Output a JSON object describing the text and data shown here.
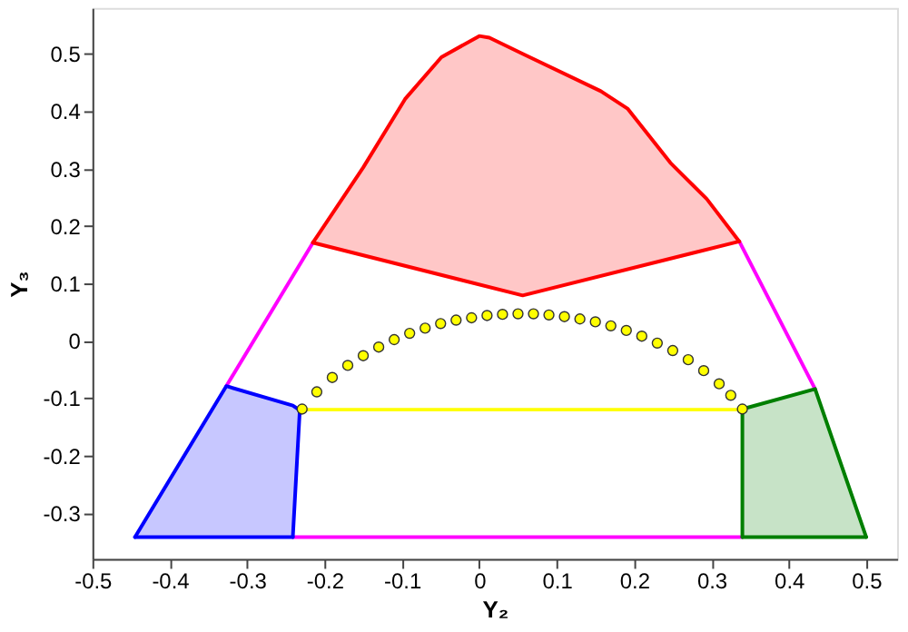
{
  "chart_data": {
    "type": "line",
    "xlabel": "Y₂",
    "ylabel": "Y₃",
    "xlim": [
      -0.5,
      0.54
    ],
    "ylim": [
      -0.38,
      0.58
    ],
    "xticks": [
      -0.5,
      -0.4,
      -0.3,
      -0.2,
      -0.1,
      0,
      0.1,
      0.2,
      0.3,
      0.4,
      0.5
    ],
    "yticks": [
      -0.3,
      -0.2,
      -0.1,
      0,
      0.1,
      0.2,
      0.3,
      0.4,
      0.5
    ],
    "grid": false,
    "series": [
      {
        "color": "#ff00ff",
        "x": [
          -0.327,
          -0.215
        ],
        "values": [
          -0.079,
          0.171
        ]
      },
      {
        "color": "#ff00ff",
        "x": [
          0.336,
          0.434
        ],
        "values": [
          0.173,
          -0.084
        ]
      },
      {
        "color": "#ff00ff",
        "x": [
          -0.241,
          0.34
        ],
        "values": [
          -0.342,
          -0.342
        ]
      },
      {
        "color": "#ff0000",
        "x": [
          -0.215,
          -0.15,
          -0.096,
          -0.049,
          0,
          0.013,
          0.056,
          0.157,
          0.192,
          0.247,
          0.294,
          0.336
        ],
        "values": [
          0.171,
          0.302,
          0.421,
          0.494,
          0.531,
          0.528,
          0.5,
          0.435,
          0.404,
          0.31,
          0.247,
          0.173
        ],
        "lower": [
          0.171,
          0.149,
          0.131,
          0.115,
          0.098,
          0.094,
          0.079,
          0.113,
          0.125,
          0.143,
          0.159,
          0.173
        ],
        "upper": [
          0.171,
          0.302,
          0.421,
          0.494,
          0.531,
          0.528,
          0.5,
          0.435,
          0.404,
          0.31,
          0.247,
          0.173
        ]
      },
      {
        "color": "#ff0000",
        "x": [
          -0.215,
          0.056,
          0.336
        ],
        "values": [
          0.171,
          0.079,
          0.173
        ]
      },
      {
        "color": "#0000ff",
        "x": [
          -0.445,
          -0.327,
          -0.241,
          -0.232
        ],
        "values": [
          -0.342,
          -0.079,
          -0.113,
          -0.121
        ],
        "lower": [
          -0.342,
          -0.342,
          -0.342,
          -0.121
        ],
        "upper": [
          -0.342,
          -0.079,
          -0.113,
          -0.121
        ]
      },
      {
        "color": "#0000ff",
        "x": [
          -0.241,
          -0.232
        ],
        "values": [
          -0.342,
          -0.121
        ]
      },
      {
        "color": "#0000ff",
        "x": [
          -0.445,
          -0.241
        ],
        "values": [
          -0.342,
          -0.342
        ]
      },
      {
        "color": "#007f00",
        "x": [
          0.34,
          0.434,
          0.5
        ],
        "values": [
          -0.119,
          -0.084,
          -0.342
        ],
        "lower": [
          -0.342,
          -0.342,
          -0.342
        ],
        "upper": [
          -0.119,
          -0.084,
          -0.342
        ]
      },
      {
        "color": "#007f00",
        "x": [
          0.34,
          0.34
        ],
        "values": [
          -0.342,
          -0.119
        ]
      },
      {
        "color": "#007f00",
        "x": [
          0.34,
          0.5
        ],
        "values": [
          -0.342,
          -0.342
        ]
      },
      {
        "color": "#ffff00",
        "x": [
          -0.229,
          0.34
        ],
        "values": [
          -0.12,
          -0.12
        ]
      },
      {
        "type": "scatter",
        "color": "#ffff00",
        "marker": "circle",
        "x": [
          -0.229,
          -0.21,
          -0.19,
          -0.17,
          -0.15,
          -0.13,
          -0.11,
          -0.09,
          -0.07,
          -0.05,
          -0.03,
          -0.01,
          0.01,
          0.03,
          0.05,
          0.07,
          0.09,
          0.11,
          0.13,
          0.15,
          0.17,
          0.19,
          0.21,
          0.23,
          0.25,
          0.27,
          0.29,
          0.31,
          0.325,
          0.34
        ],
        "values": [
          -0.119,
          -0.089,
          -0.064,
          -0.043,
          -0.026,
          -0.011,
          0.002,
          0.013,
          0.022,
          0.03,
          0.036,
          0.04,
          0.044,
          0.046,
          0.047,
          0.047,
          0.045,
          0.042,
          0.038,
          0.033,
          0.026,
          0.018,
          0.008,
          -0.004,
          -0.017,
          -0.033,
          -0.052,
          -0.075,
          -0.095,
          -0.119
        ]
      }
    ]
  }
}
